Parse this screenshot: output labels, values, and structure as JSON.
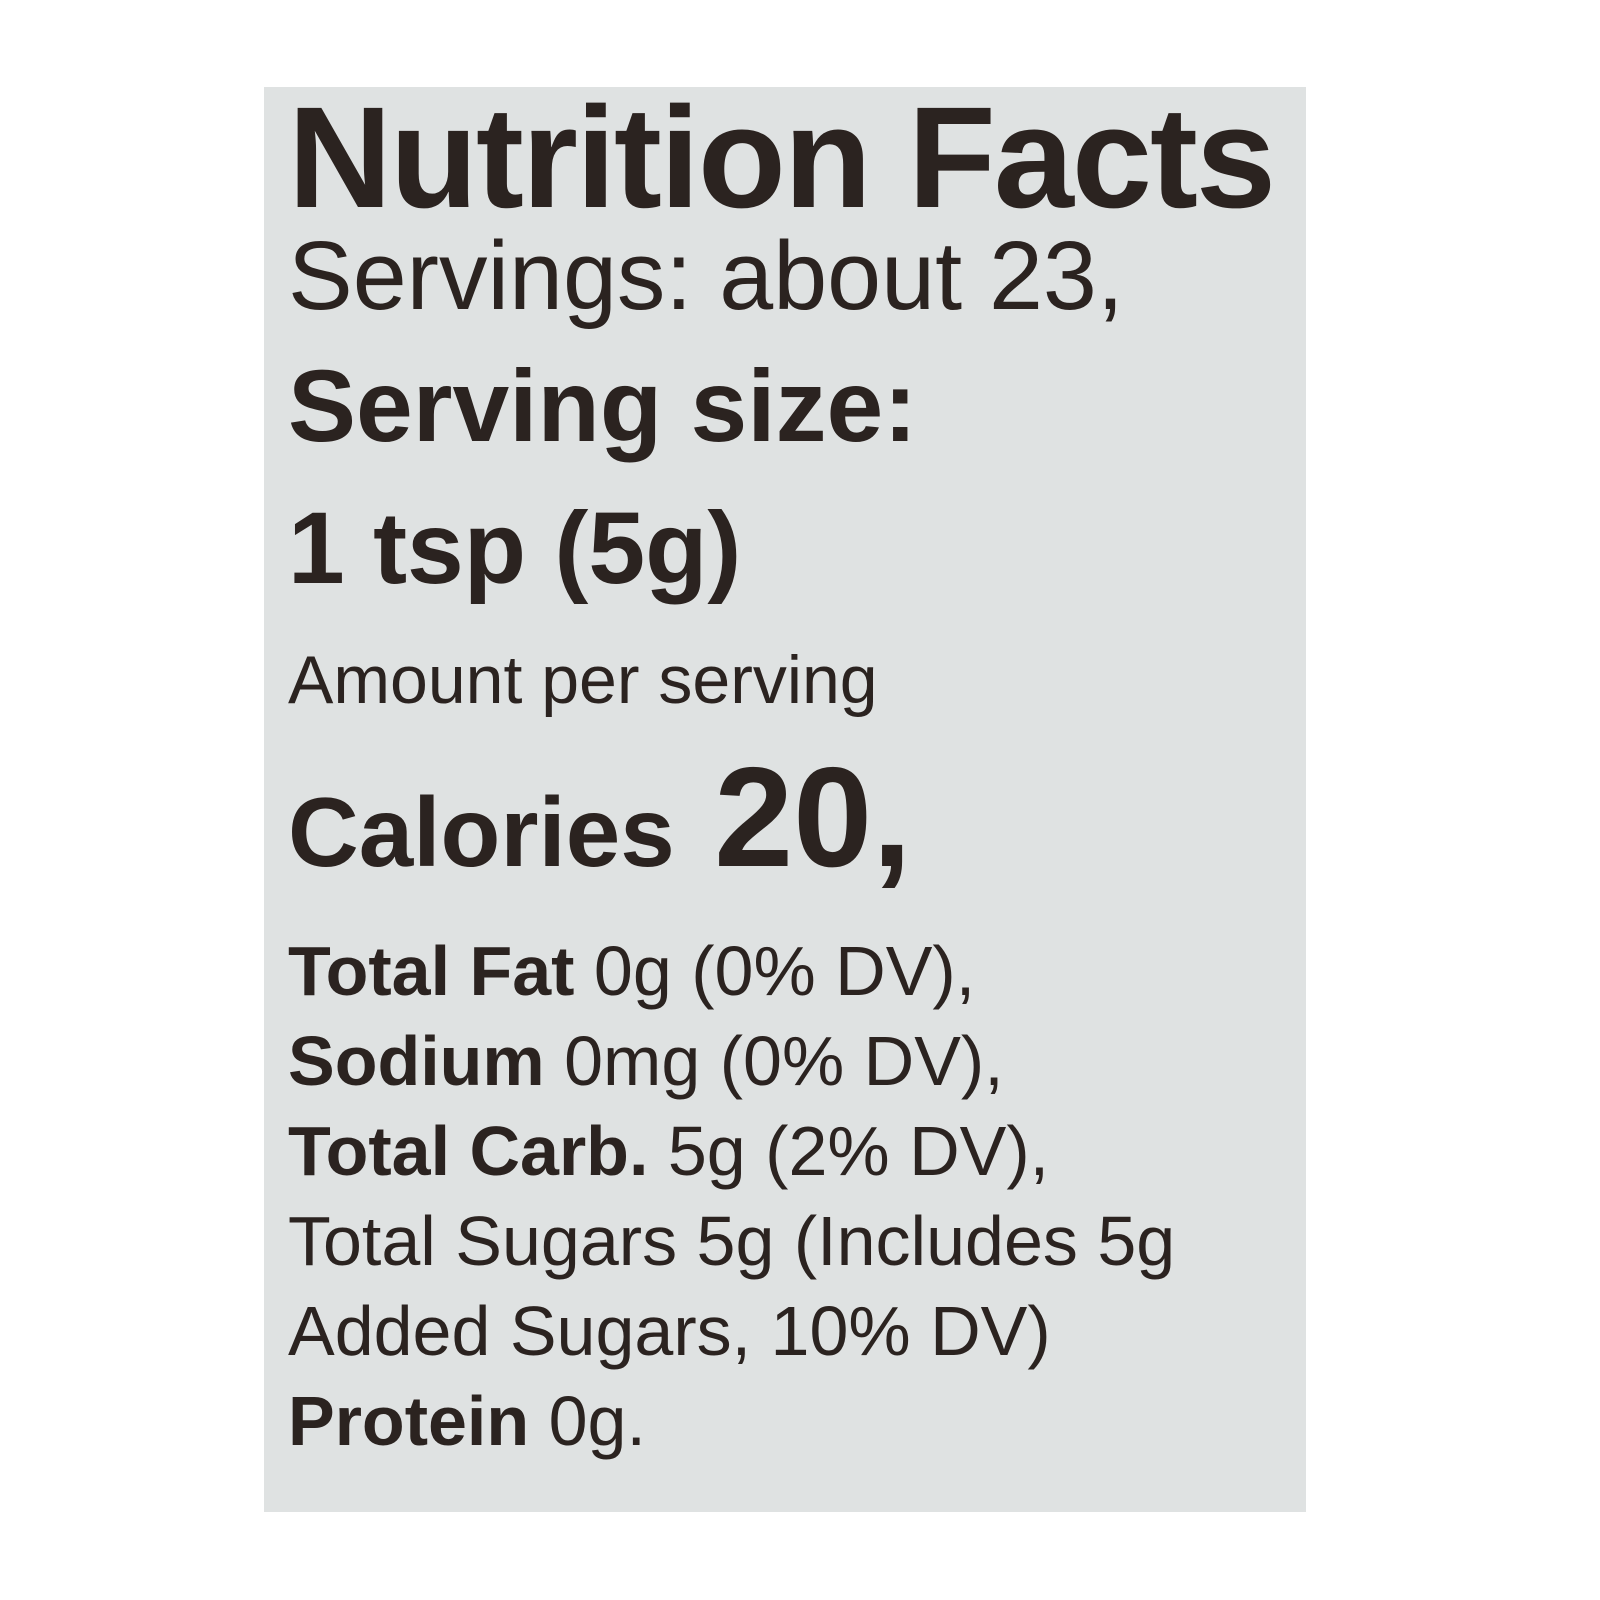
{
  "label": {
    "title": "Nutrition Facts",
    "servings": "Servings: about 23,",
    "serving_size_label": "Serving size:",
    "serving_size_value": "1 tsp (5g)",
    "amount_per_serving": "Amount per serving",
    "calories_label": "Calories",
    "calories_value": "20,",
    "nutrients": [
      {
        "name": "Total Fat",
        "value": " 0g (0% DV),"
      },
      {
        "name": "Sodium",
        "value": " 0mg (0% DV),"
      },
      {
        "name": "Total Carb.",
        "value": " 5g (2% DV),"
      },
      {
        "name": "",
        "value": "Total Sugars 5g (Includes 5g"
      },
      {
        "name": "",
        "value": "Added Sugars, 10% DV)"
      },
      {
        "name": "Protein",
        "value": " 0g."
      }
    ]
  },
  "colors": {
    "panel": "#dfe2e2",
    "text": "#2b2320"
  }
}
